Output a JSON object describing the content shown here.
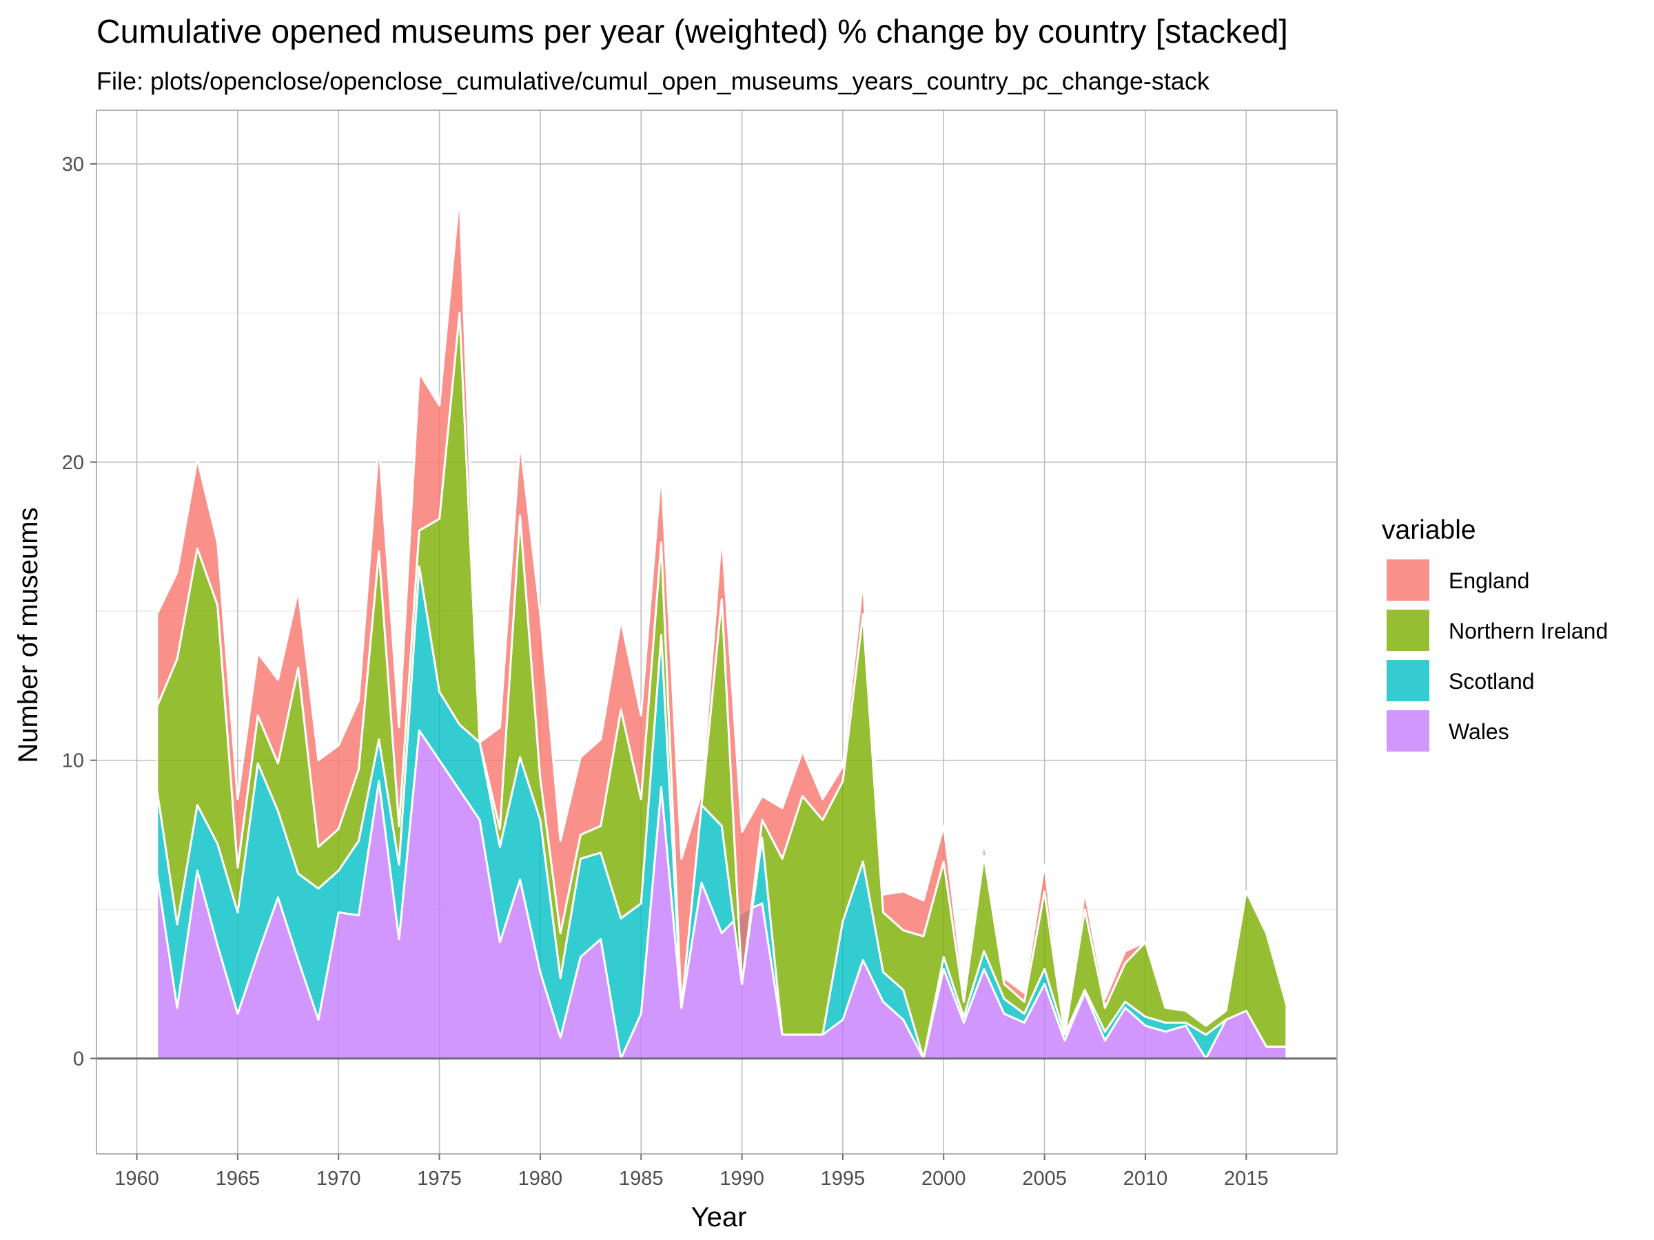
{
  "chart_data": {
    "type": "area",
    "stacked": true,
    "title": "Cumulative opened museums per year (weighted) % change by country [stacked]",
    "subtitle": "File: plots/openclose/openclose_cumulative/cumul_open_museums_years_country_pc_change-stack",
    "xlabel": "Year",
    "ylabel": "Number of museums",
    "xlim": [
      1958,
      2019.5
    ],
    "ylim": [
      -3.2,
      31.8
    ],
    "x_ticks": [
      1960,
      1965,
      1970,
      1975,
      1980,
      1985,
      1990,
      1995,
      2000,
      2005,
      2010,
      2015
    ],
    "y_ticks": [
      0,
      10,
      20,
      30
    ],
    "grid": true,
    "legend": {
      "title": "variable",
      "position": "right"
    },
    "x": [
      1961,
      1962,
      1963,
      1964,
      1965,
      1966,
      1967,
      1968,
      1969,
      1970,
      1971,
      1972,
      1973,
      1974,
      1975,
      1976,
      1977,
      1978,
      1979,
      1980,
      1981,
      1982,
      1983,
      1984,
      1985,
      1986,
      1987,
      1988,
      1989,
      1990,
      1991,
      1992,
      1993,
      1994,
      1995,
      1996,
      1997,
      1998,
      1999,
      2000,
      2001,
      2002,
      2003,
      2004,
      2005,
      2006,
      2007,
      2008,
      2009,
      2010,
      2011,
      2012,
      2013,
      2014,
      2015,
      2016,
      2017
    ],
    "series": [
      {
        "name": "Wales",
        "color": "#C77CFF",
        "values": [
          6.2,
          1.7,
          6.3,
          3.8,
          1.5,
          3.5,
          5.4,
          3.3,
          1.3,
          4.9,
          4.8,
          9.3,
          4.0,
          11.0,
          10.0,
          9.0,
          8.0,
          3.9,
          6.0,
          2.9,
          0.7,
          3.4,
          4.0,
          0.0,
          1.5,
          9.1,
          1.7,
          5.9,
          4.2,
          4.9,
          5.2,
          0.8,
          0.8,
          0.8,
          1.3,
          3.3,
          1.9,
          1.3,
          0.0,
          3.0,
          1.2,
          3.0,
          1.5,
          1.2,
          2.5,
          0.6,
          2.2,
          0.6,
          1.7,
          1.1,
          0.9,
          1.1,
          0.0,
          1.3,
          1.6,
          0.4,
          0.4
        ]
      },
      {
        "name": "Scotland",
        "color": "#00BFC4",
        "values": [
          2.8,
          2.8,
          2.2,
          3.4,
          3.4,
          6.4,
          2.9,
          2.9,
          4.4,
          1.4,
          2.5,
          1.4,
          2.5,
          5.5,
          2.3,
          2.2,
          2.6,
          3.2,
          4.1,
          5.1,
          2.0,
          3.3,
          2.9,
          4.7,
          3.7,
          5.1,
          0.0,
          2.6,
          3.6,
          -2.4,
          2.2,
          0.0,
          0.0,
          0.0,
          3.3,
          3.3,
          1.0,
          1.0,
          0.0,
          0.4,
          0.2,
          0.6,
          0.5,
          0.3,
          0.5,
          0.2,
          0.1,
          0.3,
          0.2,
          0.3,
          0.3,
          0.1,
          0.8,
          0.0,
          0.0,
          0.0,
          0.0
        ]
      },
      {
        "name": "Northern Ireland",
        "color": "#7CAE00",
        "values": [
          2.8,
          8.9,
          8.6,
          8.0,
          1.5,
          1.6,
          1.6,
          6.9,
          1.4,
          1.4,
          2.4,
          6.3,
          1.3,
          1.2,
          5.8,
          13.8,
          0.0,
          0.6,
          8.1,
          1.4,
          1.5,
          0.8,
          0.9,
          7.0,
          3.5,
          3.1,
          0.0,
          0.0,
          7.6,
          0.0,
          0.6,
          5.9,
          8.0,
          7.2,
          4.7,
          8.3,
          2.0,
          2.0,
          4.1,
          3.2,
          0.5,
          3.2,
          0.5,
          0.4,
          2.6,
          0.0,
          2.7,
          0.8,
          1.3,
          2.5,
          0.5,
          0.4,
          0.3,
          0.3,
          4.0,
          3.8,
          1.4
        ]
      },
      {
        "name": "England",
        "color": "#F8766D",
        "values": [
          3.1,
          2.9,
          3.0,
          2.1,
          2.3,
          2.1,
          2.8,
          2.6,
          2.9,
          2.8,
          2.3,
          3.6,
          3.3,
          5.3,
          3.8,
          4.0,
          0.0,
          3.4,
          2.5,
          5.5,
          3.1,
          2.6,
          2.9,
          3.0,
          2.8,
          2.4,
          5.0,
          0.4,
          2.2,
          5.1,
          0.8,
          1.7,
          1.5,
          0.7,
          0.5,
          1.1,
          0.6,
          1.3,
          1.2,
          1.2,
          0.4,
          0.5,
          0.2,
          0.3,
          0.9,
          0.0,
          0.6,
          0.3,
          0.4,
          0.0,
          0.0,
          0.0,
          0.0,
          0.0,
          0.0,
          0.0,
          0.0
        ]
      }
    ]
  }
}
